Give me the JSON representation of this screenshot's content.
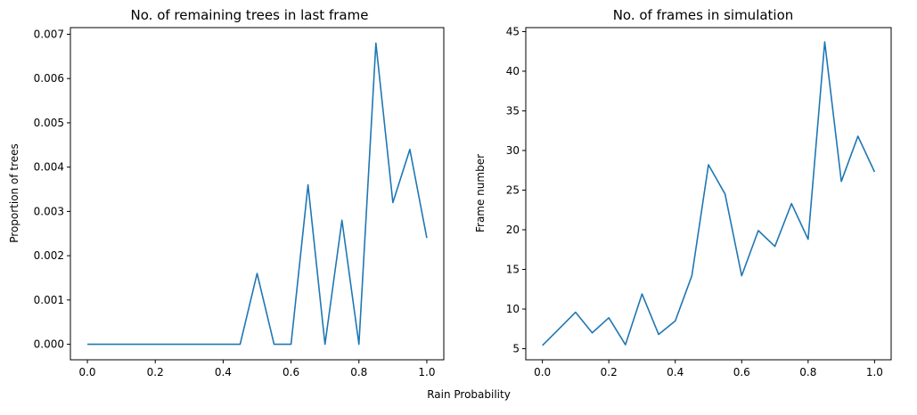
{
  "figure": {
    "shared_xlabel": "Rain Probability"
  },
  "chart_data": [
    {
      "type": "line",
      "title": "No. of remaining trees in last frame",
      "xlabel": "",
      "ylabel": "Proportion of trees",
      "x": [
        0.0,
        0.05,
        0.1,
        0.15,
        0.2,
        0.25,
        0.3,
        0.35,
        0.4,
        0.45,
        0.5,
        0.55,
        0.6,
        0.65,
        0.7,
        0.75,
        0.8,
        0.85,
        0.9,
        0.95,
        1.0
      ],
      "series": [
        {
          "values": [
            0,
            0,
            0,
            0,
            0,
            0,
            0,
            0,
            0,
            0,
            0.0016,
            0,
            0,
            0.0036,
            0,
            0.0028,
            0,
            0.0068,
            0.0032,
            0.0044,
            0.0024
          ],
          "color": "#1f77b4"
        }
      ],
      "xlim": [
        -0.05,
        1.05
      ],
      "ylim": [
        -0.00035,
        0.00715
      ],
      "xticks": [
        0.0,
        0.2,
        0.4,
        0.6,
        0.8,
        1.0
      ],
      "xtick_labels": [
        "0.0",
        "0.2",
        "0.4",
        "0.6",
        "0.8",
        "1.0"
      ],
      "yticks": [
        0,
        0.001,
        0.002,
        0.003,
        0.004,
        0.005,
        0.006,
        0.007
      ],
      "ytick_labels": [
        "0.000",
        "0.001",
        "0.002",
        "0.003",
        "0.004",
        "0.005",
        "0.006",
        "0.007"
      ],
      "grid": false
    },
    {
      "type": "line",
      "title": "No. of frames in simulation",
      "xlabel": "",
      "ylabel": "Frame number",
      "x": [
        0.0,
        0.05,
        0.1,
        0.15,
        0.2,
        0.25,
        0.3,
        0.35,
        0.4,
        0.45,
        0.5,
        0.55,
        0.6,
        0.65,
        0.7,
        0.75,
        0.8,
        0.85,
        0.9,
        0.95,
        1.0
      ],
      "series": [
        {
          "values": [
            5.4,
            7.5,
            9.6,
            7.0,
            8.9,
            5.5,
            11.9,
            6.8,
            8.5,
            14.2,
            28.2,
            24.5,
            14.2,
            19.9,
            17.9,
            23.3,
            18.8,
            43.7,
            26.1,
            31.8,
            27.3
          ],
          "color": "#1f77b4"
        }
      ],
      "xlim": [
        -0.05,
        1.05
      ],
      "ylim": [
        3.6,
        45.5
      ],
      "xticks": [
        0.0,
        0.2,
        0.4,
        0.6,
        0.8,
        1.0
      ],
      "xtick_labels": [
        "0.0",
        "0.2",
        "0.4",
        "0.6",
        "0.8",
        "1.0"
      ],
      "yticks": [
        5,
        10,
        15,
        20,
        25,
        30,
        35,
        40,
        45
      ],
      "ytick_labels": [
        "5",
        "10",
        "15",
        "20",
        "25",
        "30",
        "35",
        "40",
        "45"
      ],
      "grid": false
    }
  ]
}
